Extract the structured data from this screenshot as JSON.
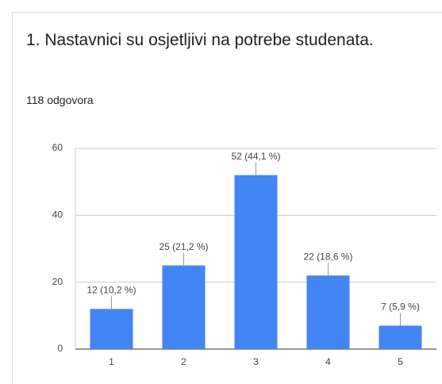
{
  "chart_data": {
    "type": "bar",
    "title": "1. Nastavnici su osjetljivi na potrebe studenata.",
    "subtitle": "118 odgovora",
    "categories": [
      "1",
      "2",
      "3",
      "4",
      "5"
    ],
    "values": [
      12,
      25,
      52,
      22,
      7
    ],
    "value_labels": [
      "12 (10,2 %)",
      "25 (21,2 %)",
      "52 (44,1 %)",
      "22 (18,6 %)",
      "7 (5,9 %)"
    ],
    "color": "#4285f4",
    "ylim": [
      0,
      60
    ],
    "yticks": [
      0,
      20,
      40,
      60
    ],
    "grid": true
  }
}
